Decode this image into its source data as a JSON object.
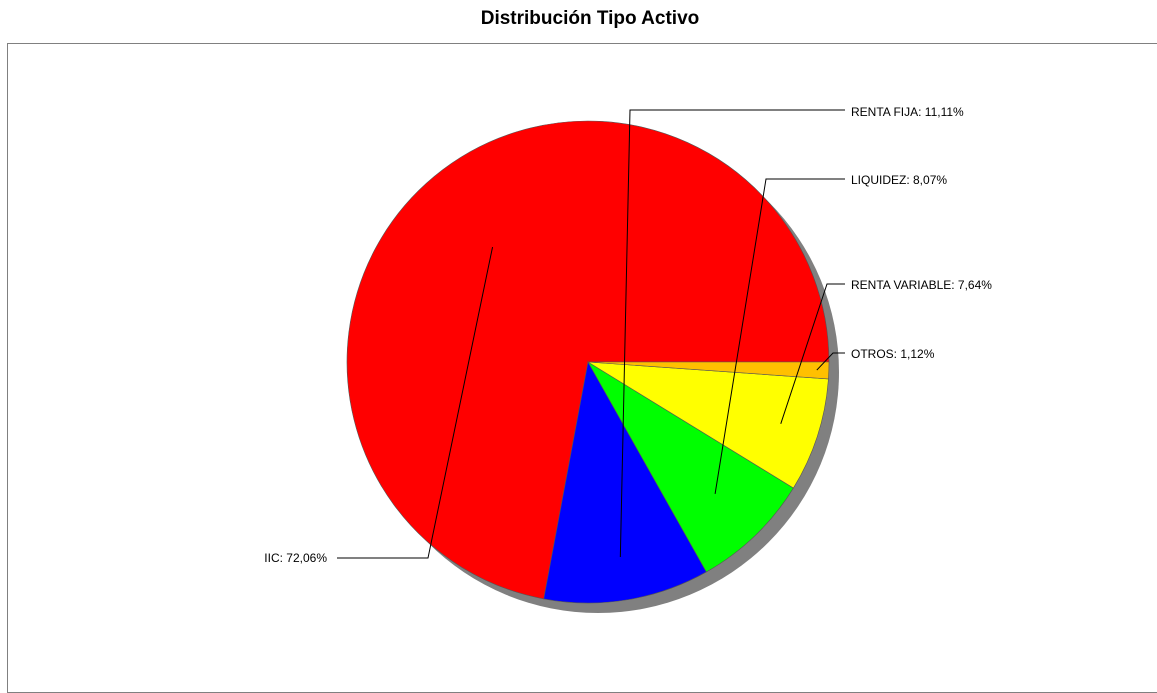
{
  "chart_data": {
    "type": "pie",
    "title": "Distribución Tipo Activo",
    "slices": [
      {
        "label": "IIC",
        "value": 72.06,
        "label_text": "IIC: 72,06%",
        "color": "#ff0000"
      },
      {
        "label": "RENTA FIJA",
        "value": 11.11,
        "label_text": "RENTA FIJA: 11,11%",
        "color": "#0000ff"
      },
      {
        "label": "LIQUIDEZ",
        "value": 8.07,
        "label_text": "LIQUIDEZ: 8,07%",
        "color": "#00ff00"
      },
      {
        "label": "RENTA VARIABLE",
        "value": 7.64,
        "label_text": "RENTA VARIABLE: 7,64%",
        "color": "#ffff00"
      },
      {
        "label": "OTROS",
        "value": 1.12,
        "label_text": "OTROS: 1,12%",
        "color": "#ffc000"
      }
    ],
    "start_angle_deg": 0,
    "direction": "counterclockwise",
    "shadow": true,
    "shadow_color": "#808080",
    "legend": "none"
  }
}
